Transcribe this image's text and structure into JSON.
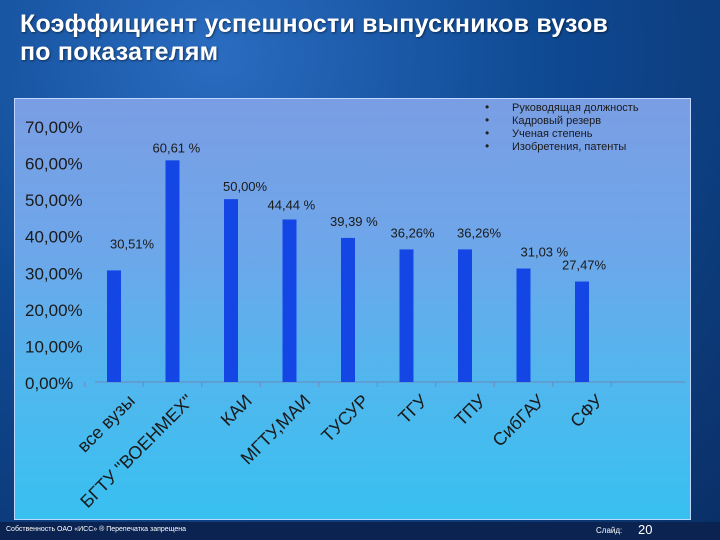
{
  "title": {
    "line1": "Коэффициент успешности выпускников вузов",
    "line2": "по показателям"
  },
  "chart_data": {
    "type": "bar",
    "categories": [
      "все вузы",
      "БГТУ \"ВОЕНМЕХ\"",
      "КАИ",
      "МГТУ,МАИ",
      "ТУСУР",
      "ТГУ",
      "ТПУ",
      "СибГАУ",
      "СФУ"
    ],
    "values": [
      30.51,
      60.61,
      50.0,
      44.44,
      39.39,
      36.26,
      36.26,
      31.03,
      27.47
    ],
    "data_labels": [
      "30,51%",
      "60,61 %",
      "50,00%",
      "44,44 %",
      "39,39 %",
      "36,26%",
      "36,26%",
      "31,03 %",
      "27,47%"
    ],
    "y_ticks": [
      "0,00%",
      "10,00%",
      "20,00%",
      "30,00%",
      "40,00%",
      "50,00%",
      "60,00%",
      "70,00%"
    ],
    "ylim": [
      0,
      70
    ],
    "ytick_values": [
      0,
      10,
      20,
      30,
      40,
      50,
      60,
      70
    ],
    "legend": [
      "Руководящая должность",
      "Кадровый резерв",
      "Ученая степень",
      "Изобретения, патенты"
    ],
    "legend_position": "top-right",
    "bar_color": "#1446e6"
  },
  "footer": {
    "left": "Собственность ОАО «ИСС» ® Перепечатка запрещена",
    "slide_label": "Слайд:",
    "slide_number": "20"
  }
}
